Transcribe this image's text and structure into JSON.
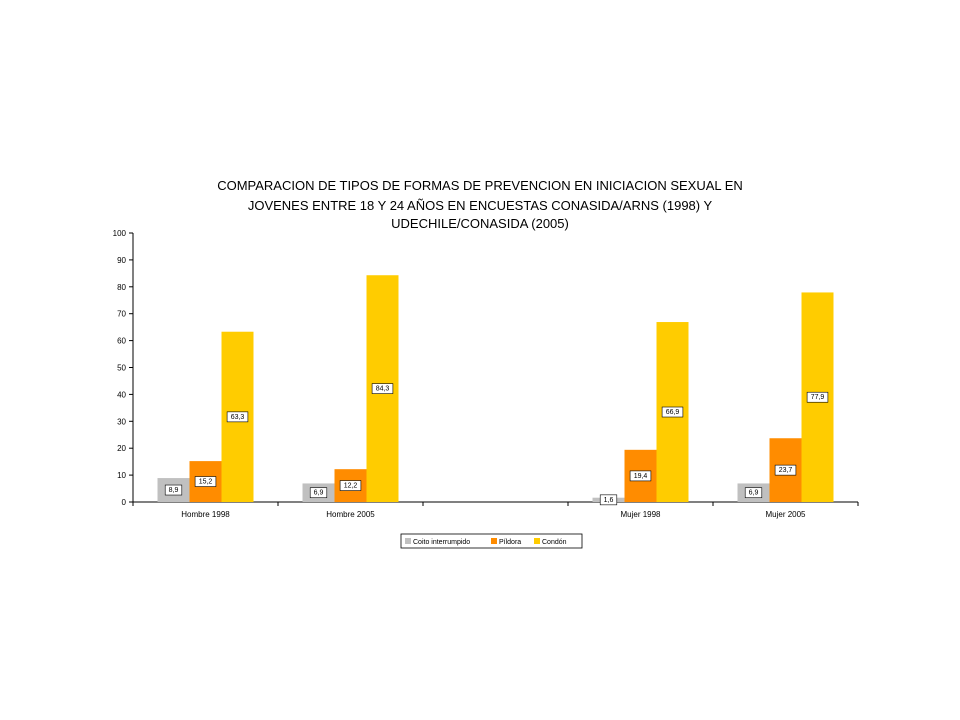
{
  "chart_data": {
    "type": "bar",
    "title_lines": [
      "COMPARACION DE TIPOS DE FORMAS DE PREVENCION EN INICIACION SEXUAL EN",
      "JOVENES ENTRE 18 Y 24 AÑOS EN ENCUESTAS CONASIDA/ARNS (1998) Y",
      "UDECHILE/CONASIDA (2005)"
    ],
    "categories": [
      "Hombre 1998",
      "Hombre 2005",
      "",
      "Mujer 1998",
      "Mujer 2005"
    ],
    "series": [
      {
        "name": "Coito interrumpido",
        "color": "#c0c0c0",
        "values": [
          8.9,
          6.9,
          null,
          1.6,
          6.9
        ],
        "labels": [
          "8,9",
          "6,9",
          "",
          "1,6",
          "6,9"
        ]
      },
      {
        "name": "Píldora",
        "color": "#ff8c00",
        "values": [
          15.2,
          12.2,
          null,
          19.4,
          23.7
        ],
        "labels": [
          "15,2",
          "12,2",
          "",
          "19,4",
          "23,7"
        ]
      },
      {
        "name": "Condón",
        "color": "#ffcc00",
        "values": [
          63.3,
          84.3,
          null,
          66.9,
          77.9
        ],
        "labels": [
          "63,3",
          "84,3",
          "",
          "66,9",
          "77,9"
        ]
      }
    ],
    "y_ticks": [
      "0",
      "10",
      "20",
      "30",
      "40",
      "50",
      "60",
      "70",
      "80",
      "90",
      "100"
    ],
    "ylim": [
      0,
      100
    ],
    "xlabel": "",
    "ylabel": "",
    "grid": false,
    "legend_position": "bottom-center"
  }
}
